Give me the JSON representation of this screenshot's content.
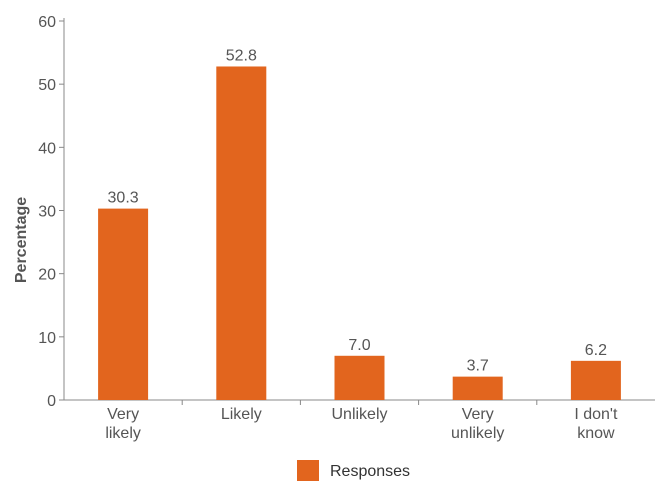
{
  "chart_data": {
    "type": "bar",
    "categories": [
      [
        "Very",
        "likely"
      ],
      [
        "Likely"
      ],
      [
        "Unlikely"
      ],
      [
        "Very",
        "unlikely"
      ],
      [
        "I don't",
        "know"
      ]
    ],
    "series": [
      {
        "name": "Responses",
        "values": [
          30.3,
          52.8,
          7.0,
          3.7,
          6.2
        ]
      }
    ],
    "data_labels": [
      "30.3",
      "52.8",
      "7.0",
      "3.7",
      "6.2"
    ],
    "ylabel": "Percentage",
    "ylim": [
      0,
      60
    ],
    "yticks": [
      0,
      10,
      20,
      30,
      40,
      50,
      60
    ],
    "grid": false,
    "legend_position": "bottom-center",
    "bar_color": "#E2651E"
  }
}
